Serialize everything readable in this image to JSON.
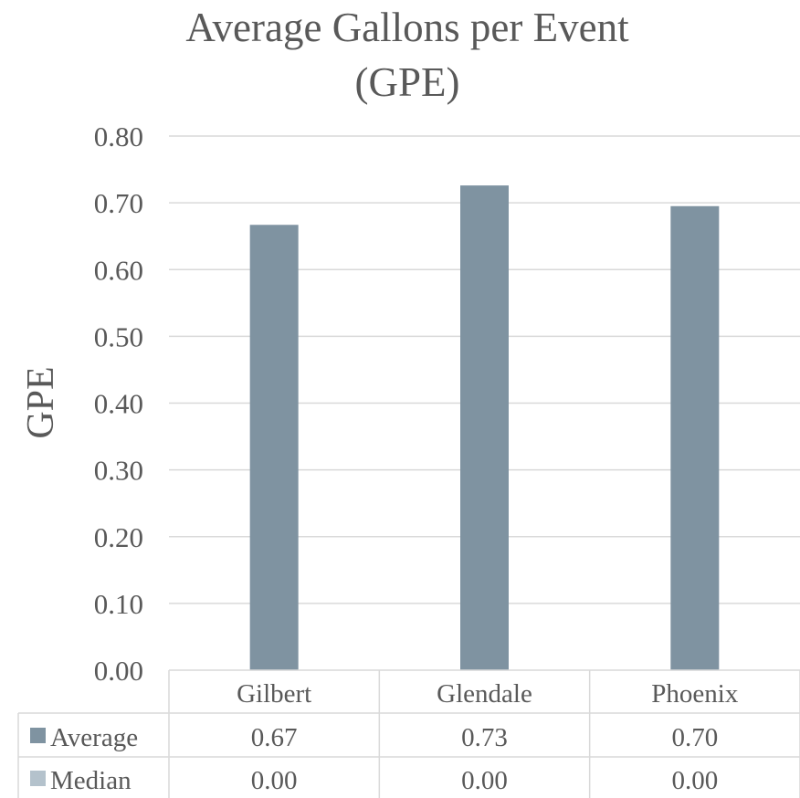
{
  "chart_data": {
    "type": "bar",
    "title_lines": [
      "Average Gallons per Event",
      "(GPE)"
    ],
    "ylabel": "GPE",
    "xlabel": "",
    "categories": [
      "Gilbert",
      "Glendale",
      "Phoenix"
    ],
    "ylim": [
      0,
      0.8
    ],
    "ytick_step": 0.1,
    "ytick_labels": [
      "0.00",
      "0.10",
      "0.20",
      "0.30",
      "0.40",
      "0.50",
      "0.60",
      "0.70",
      "0.80"
    ],
    "grid": true,
    "legend": "data-table",
    "series": [
      {
        "name": "Average",
        "values": [
          0.667,
          0.726,
          0.695
        ],
        "labels": [
          "0.67",
          "0.73",
          "0.70"
        ],
        "color": "#7f93a1"
      },
      {
        "name": "Median",
        "values": [
          0,
          0,
          0
        ],
        "labels": [
          "0.00",
          "0.00",
          "0.00"
        ],
        "color": "#b4c2cc"
      }
    ],
    "colors": {
      "gridline": "#d9d9d9",
      "text": "#595959"
    }
  }
}
